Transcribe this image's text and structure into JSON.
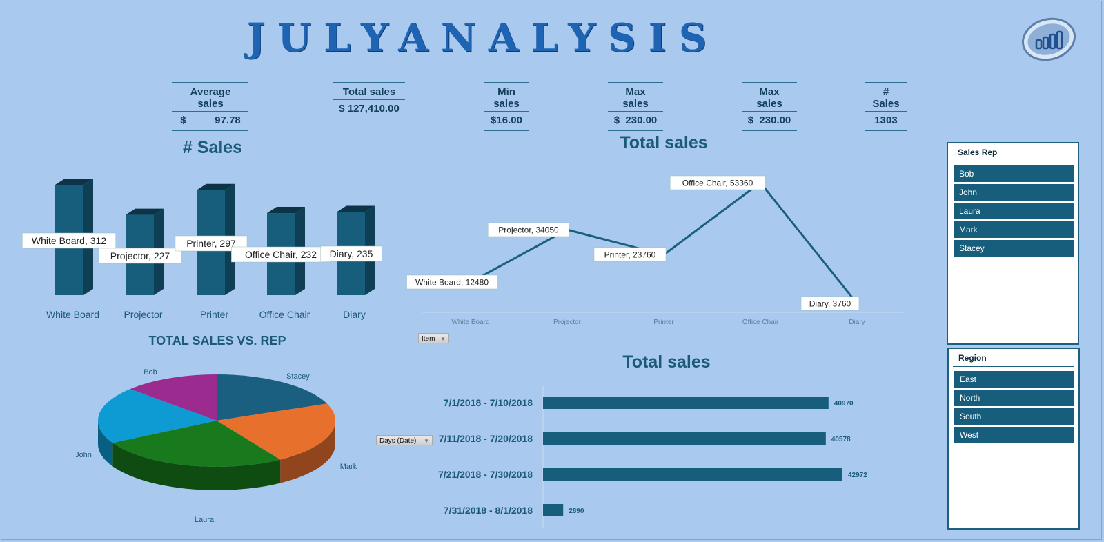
{
  "title": "JULYANALYSIS",
  "kpis": [
    {
      "label": "Average sales",
      "value": "$          97.78"
    },
    {
      "label": "Total sales",
      "value": "$ 127,410.00"
    },
    {
      "label": "Min sales",
      "value": "$16.00"
    },
    {
      "label": "Max sales",
      "value": "$  230.00"
    },
    {
      "label": "Max sales",
      "value": "$  230.00"
    },
    {
      "label": "# Sales",
      "value": "1303"
    }
  ],
  "colors": {
    "background": "#a9c9ee",
    "bar": "#175d7c",
    "line": "#1b5f80",
    "pie": [
      "#1b5f80",
      "#e8702d",
      "#187a1c",
      "#0e9ad3",
      "#9b2b8f"
    ]
  },
  "chart_data": [
    {
      "type": "bar",
      "title": "# Sales",
      "categories": [
        "White Board",
        "Projector",
        "Printer",
        "Office Chair",
        "Diary"
      ],
      "values": [
        312,
        227,
        297,
        232,
        235
      ],
      "data_labels": [
        "White Board, 312",
        "Projector, 227",
        "Printer, 297",
        "Office Chair, 232",
        "Diary, 235"
      ]
    },
    {
      "type": "line",
      "title": "Total sales",
      "categories": [
        "White Board",
        "Projector",
        "Printer",
        "Office Chair",
        "Diary"
      ],
      "values": [
        12480,
        34050,
        23760,
        53360,
        3760
      ],
      "data_labels": [
        "White Board, 12480",
        "Projector, 34050",
        "Printer, 23760",
        "Office Chair, 53360",
        "Diary, 3760"
      ],
      "filter_button": "Item"
    },
    {
      "type": "pie",
      "title": "TOTAL SALES VS. REP",
      "categories": [
        "Stacey",
        "Mark",
        "Laura",
        "John",
        "Bob"
      ],
      "values": [
        19,
        22,
        26,
        20,
        13
      ]
    },
    {
      "type": "bar",
      "orientation": "horizontal",
      "title": "Total sales",
      "categories": [
        "7/1/2018 - 7/10/2018",
        "7/11/2018 - 7/20/2018",
        "7/21/2018 - 7/30/2018",
        "7/31/2018 - 8/1/2018"
      ],
      "values": [
        40970,
        40578,
        42972,
        2890
      ],
      "filter_button": "Days (Date)"
    }
  ],
  "slicers": {
    "rep": {
      "title": "Sales Rep",
      "items": [
        "Bob",
        "John",
        "Laura",
        "Mark",
        "Stacey"
      ]
    },
    "region": {
      "title": "Region",
      "items": [
        "East",
        "North",
        "South",
        "West"
      ]
    }
  }
}
